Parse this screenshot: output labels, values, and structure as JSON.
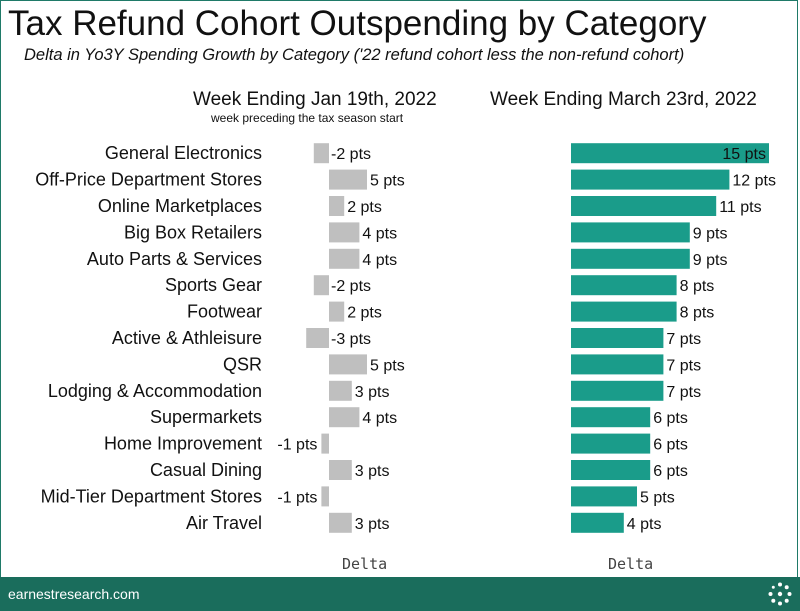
{
  "header": {
    "title": "Tax Refund Cohort Outspending by Category",
    "subtitle": "Delta in Yo3Y Spending Growth by Category ('22 refund cohort less the non-refund cohort)"
  },
  "chart_data": [
    {
      "type": "bar",
      "orientation": "horizontal",
      "title": "Week Ending Jan 19th, 2022",
      "subtitle": "week preceding the tax season start",
      "xlabel": "Delta",
      "value_suffix": " pts",
      "bar_color": "#bfbfbf",
      "categories": [
        "General Electronics",
        "Off-Price Department Stores",
        "Online Marketplaces",
        "Big Box Retailers",
        "Auto Parts & Services",
        "Sports Gear",
        "Footwear",
        "Active & Athleisure",
        "QSR",
        "Lodging & Accommodation",
        "Supermarkets",
        "Home Improvement",
        "Casual Dining",
        "Mid-Tier Department Stores",
        "Air Travel"
      ],
      "values": [
        -2,
        5,
        2,
        4,
        4,
        -2,
        2,
        -3,
        5,
        3,
        4,
        -1,
        3,
        -1,
        3
      ]
    },
    {
      "type": "bar",
      "orientation": "horizontal",
      "title": "Week Ending March 23rd, 2022",
      "xlabel": "Delta",
      "value_suffix": " pts",
      "bar_color": "#1a9c8a",
      "categories": [
        "General Electronics",
        "Off-Price Department Stores",
        "Online Marketplaces",
        "Big Box Retailers",
        "Auto Parts & Services",
        "Sports Gear",
        "Footwear",
        "Active & Athleisure",
        "QSR",
        "Lodging & Accommodation",
        "Supermarkets",
        "Home Improvement",
        "Casual Dining",
        "Mid-Tier Department Stores",
        "Air Travel"
      ],
      "values": [
        15,
        12,
        11,
        9,
        9,
        8,
        8,
        7,
        7,
        7,
        6,
        6,
        6,
        5,
        4
      ]
    }
  ],
  "footer": {
    "site": "earnestresearch.com",
    "logo_icon": "dotted-circle-logo-icon"
  }
}
